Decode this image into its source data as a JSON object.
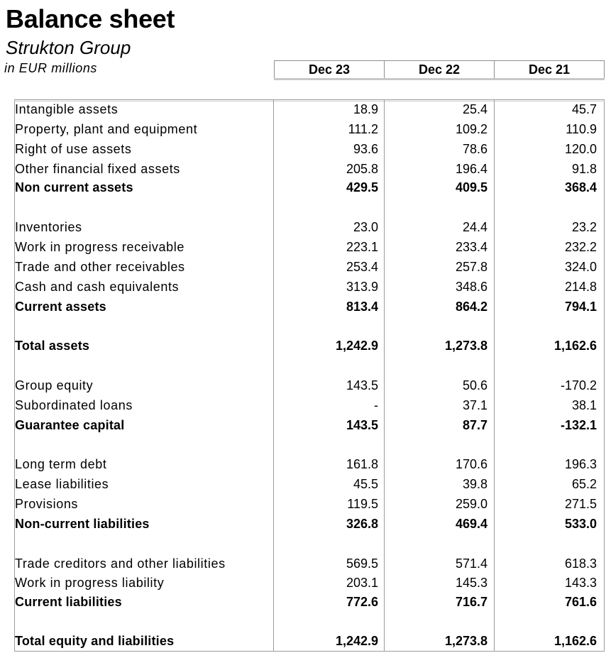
{
  "title": "Balance sheet",
  "subtitle": "Strukton Group",
  "unit": "in EUR millions",
  "columns": [
    "Dec 23",
    "Dec 22",
    "Dec 21"
  ],
  "rows": [
    {
      "label": "Intangible assets",
      "values": [
        "18.9",
        "25.4",
        "45.7"
      ],
      "bold": false
    },
    {
      "label": "Property, plant and equipment",
      "values": [
        "111.2",
        "109.2",
        "110.9"
      ],
      "bold": false
    },
    {
      "label": "Right of use assets",
      "values": [
        "93.6",
        "78.6",
        "120.0"
      ],
      "bold": false
    },
    {
      "label": "Other financial fixed assets",
      "values": [
        "205.8",
        "196.4",
        "91.8"
      ],
      "bold": false
    },
    {
      "label": "Non current assets",
      "values": [
        "429.5",
        "409.5",
        "368.4"
      ],
      "bold": true
    },
    {
      "label": "Inventories",
      "values": [
        "23.0",
        "24.4",
        "23.2"
      ],
      "bold": false
    },
    {
      "label": "Work in progress receivable",
      "values": [
        "223.1",
        "233.4",
        "232.2"
      ],
      "bold": false
    },
    {
      "label": "Trade and other receivables",
      "values": [
        "253.4",
        "257.8",
        "324.0"
      ],
      "bold": false
    },
    {
      "label": "Cash and cash equivalents",
      "values": [
        "313.9",
        "348.6",
        "214.8"
      ],
      "bold": false
    },
    {
      "label": "Current assets",
      "values": [
        "813.4",
        "864.2",
        "794.1"
      ],
      "bold": true
    },
    {
      "label": "Total assets",
      "values": [
        "1,242.9",
        "1,273.8",
        "1,162.6"
      ],
      "bold": true
    },
    {
      "label": "Group equity",
      "values": [
        "143.5",
        "50.6",
        "-170.2"
      ],
      "bold": false
    },
    {
      "label": "Subordinated loans",
      "values": [
        "-",
        "37.1",
        "38.1"
      ],
      "bold": false
    },
    {
      "label": "Guarantee capital",
      "values": [
        "143.5",
        "87.7",
        "-132.1"
      ],
      "bold": true
    },
    {
      "label": "Long term debt",
      "values": [
        "161.8",
        "170.6",
        "196.3"
      ],
      "bold": false
    },
    {
      "label": "Lease liabilities",
      "values": [
        "45.5",
        "39.8",
        "65.2"
      ],
      "bold": false
    },
    {
      "label": "Provisions",
      "values": [
        "119.5",
        "259.0",
        "271.5"
      ],
      "bold": false
    },
    {
      "label": "Non-current liabilities",
      "values": [
        "326.8",
        "469.4",
        "533.0"
      ],
      "bold": true
    },
    {
      "label": "Trade creditors and other liabilities",
      "values": [
        "569.5",
        "571.4",
        "618.3"
      ],
      "bold": false
    },
    {
      "label": "Work in progress liability",
      "values": [
        "203.1",
        "145.3",
        "143.3"
      ],
      "bold": false
    },
    {
      "label": "Current liabilities",
      "values": [
        "772.6",
        "716.7",
        "761.6"
      ],
      "bold": true
    },
    {
      "label": "Total equity and liabilities",
      "values": [
        "1,242.9",
        "1,273.8",
        "1,162.6"
      ],
      "bold": true
    }
  ]
}
